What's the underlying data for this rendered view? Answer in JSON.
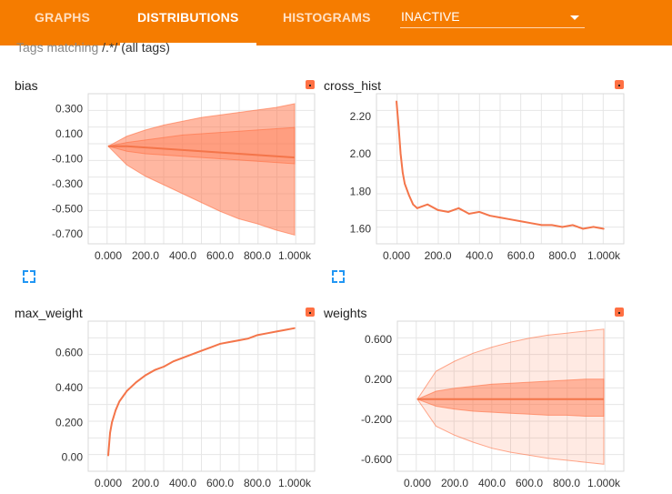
{
  "tabs": [
    {
      "label": "GRAPHS",
      "active": false
    },
    {
      "label": "DISTRIBUTIONS",
      "active": true
    },
    {
      "label": "HISTOGRAMS",
      "active": false
    }
  ],
  "run_select": {
    "value": "INACTIVE"
  },
  "tag_filter": {
    "label": "Tags matching",
    "pattern": "/.*/",
    "suffix": "(all tags)"
  },
  "colors": {
    "accent": "#f57c00",
    "series": "#f4754a",
    "band": "#ff7043"
  },
  "icons": {
    "card_menu": "orange-square-icon",
    "expand": "fullscreen-icon",
    "dropdown": "caret-down-icon"
  },
  "cards": [
    {
      "title": "bias"
    },
    {
      "title": "cross_hist"
    },
    {
      "title": "max_weight"
    },
    {
      "title": "weights"
    }
  ],
  "chart_data": [
    {
      "title": "bias",
      "type": "area",
      "x": [
        0,
        100,
        200,
        300,
        400,
        500,
        600,
        700,
        800,
        900,
        1000
      ],
      "x_ticks": [
        "0.000",
        "200.0",
        "400.0",
        "600.0",
        "800.0",
        "1.000k"
      ],
      "y_ticks": [
        "0.300",
        "0.100",
        "-0.100",
        "-0.300",
        "-0.500",
        "-0.700"
      ],
      "ylim": [
        -0.78,
        0.42
      ],
      "grid": true,
      "bands": [
        {
          "upper": [
            0,
            0.08,
            0.13,
            0.17,
            0.2,
            0.23,
            0.25,
            0.27,
            0.29,
            0.31,
            0.34
          ],
          "lower": [
            0,
            -0.15,
            -0.24,
            -0.31,
            -0.38,
            -0.45,
            -0.52,
            -0.58,
            -0.62,
            -0.67,
            -0.71
          ],
          "opacity": 0.5
        },
        {
          "upper": [
            0,
            0.03,
            0.05,
            0.07,
            0.09,
            0.1,
            0.11,
            0.12,
            0.13,
            0.14,
            0.15
          ],
          "lower": [
            0,
            -0.04,
            -0.06,
            -0.07,
            -0.08,
            -0.09,
            -0.1,
            -0.11,
            -0.12,
            -0.13,
            -0.14
          ],
          "opacity": 0.35
        }
      ],
      "median": [
        0,
        0.0,
        -0.01,
        -0.02,
        -0.03,
        -0.04,
        -0.05,
        -0.06,
        -0.07,
        -0.08,
        -0.09
      ]
    },
    {
      "title": "cross_hist",
      "type": "line",
      "x": [
        0,
        10,
        20,
        30,
        40,
        60,
        80,
        100,
        150,
        200,
        250,
        300,
        350,
        400,
        450,
        500,
        550,
        600,
        650,
        700,
        750,
        800,
        850,
        900,
        950,
        1000
      ],
      "y": [
        2.28,
        2.15,
        2.0,
        1.9,
        1.84,
        1.78,
        1.73,
        1.71,
        1.73,
        1.7,
        1.69,
        1.71,
        1.68,
        1.69,
        1.67,
        1.66,
        1.65,
        1.64,
        1.63,
        1.62,
        1.62,
        1.61,
        1.62,
        1.6,
        1.61,
        1.6
      ],
      "x_ticks": [
        "0.000",
        "200.0",
        "400.0",
        "600.0",
        "800.0",
        "1.000k"
      ],
      "y_ticks": [
        "2.20",
        "2.00",
        "1.80",
        "1.60"
      ],
      "ylim": [
        1.52,
        2.32
      ],
      "grid": true
    },
    {
      "title": "max_weight",
      "type": "line",
      "x": [
        0,
        10,
        20,
        40,
        60,
        80,
        100,
        150,
        200,
        250,
        300,
        350,
        400,
        450,
        500,
        550,
        600,
        650,
        700,
        750,
        800,
        850,
        900,
        950,
        1000
      ],
      "y": [
        0.01,
        0.14,
        0.2,
        0.27,
        0.32,
        0.35,
        0.38,
        0.43,
        0.47,
        0.5,
        0.52,
        0.55,
        0.57,
        0.59,
        0.61,
        0.63,
        0.65,
        0.66,
        0.67,
        0.68,
        0.7,
        0.71,
        0.72,
        0.73,
        0.74
      ],
      "x_ticks": [
        "0.000",
        "200.0",
        "400.0",
        "600.0",
        "800.0",
        "1.000k"
      ],
      "y_ticks": [
        "0.600",
        "0.400",
        "0.200",
        "0.00"
      ],
      "ylim": [
        -0.08,
        0.78
      ],
      "grid": true
    },
    {
      "title": "weights",
      "type": "area",
      "x": [
        0,
        100,
        200,
        300,
        400,
        500,
        600,
        700,
        800,
        900,
        1000
      ],
      "x_ticks": [
        "0.000",
        "200.0",
        "400.0",
        "600.0",
        "800.0",
        "1.000k"
      ],
      "y_ticks": [
        "0.600",
        "0.200",
        "-0.200",
        "-0.600"
      ],
      "ylim": [
        -0.72,
        0.78
      ],
      "grid": true,
      "bands": [
        {
          "upper": [
            0,
            0.28,
            0.38,
            0.46,
            0.52,
            0.57,
            0.61,
            0.64,
            0.66,
            0.68,
            0.7
          ],
          "lower": [
            0,
            -0.27,
            -0.36,
            -0.43,
            -0.49,
            -0.53,
            -0.56,
            -0.59,
            -0.61,
            -0.63,
            -0.65
          ],
          "opacity": 0.15
        },
        {
          "upper": [
            0,
            0.08,
            0.11,
            0.13,
            0.15,
            0.16,
            0.17,
            0.18,
            0.19,
            0.2,
            0.2
          ],
          "lower": [
            0,
            -0.07,
            -0.1,
            -0.12,
            -0.13,
            -0.14,
            -0.15,
            -0.16,
            -0.16,
            -0.17,
            -0.17
          ],
          "opacity": 0.45
        }
      ],
      "median": [
        0,
        0,
        0,
        0,
        0,
        0,
        0,
        0,
        0,
        0,
        0
      ]
    }
  ]
}
